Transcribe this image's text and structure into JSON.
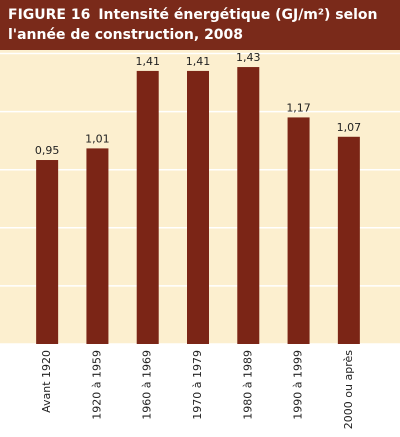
{
  "chart_data": {
    "type": "bar",
    "figure_label": "FIGURE 16",
    "title": "Intensité énergétique (GJ/m²) selon l'année de construction, 2008",
    "categories": [
      "Avant 1920",
      "1920 à 1959",
      "1960 à 1969",
      "1970 à 1979",
      "1980 à 1989",
      "1990 à 1999",
      "2000 ou après"
    ],
    "values": [
      0.95,
      1.01,
      1.41,
      1.41,
      1.43,
      1.17,
      1.07
    ],
    "value_labels": [
      "0,95",
      "1,01",
      "1,41",
      "1,41",
      "1,43",
      "1,17",
      "1,07"
    ],
    "color": "#7b2516",
    "ylim": [
      0,
      1.5
    ],
    "yticks": [
      0,
      0.3,
      0.6,
      0.9,
      1.2,
      1.5
    ],
    "grid": true
  }
}
